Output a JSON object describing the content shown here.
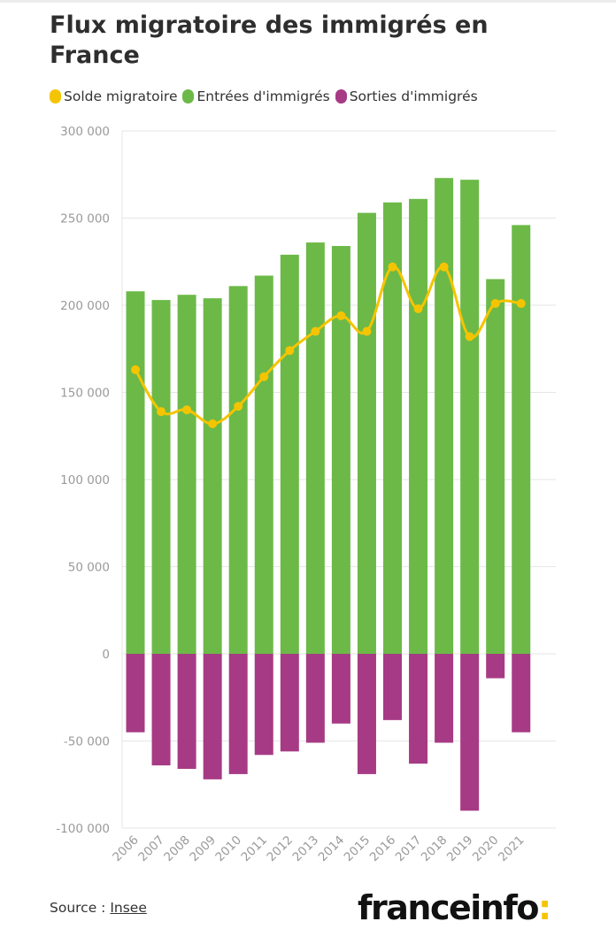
{
  "title": "Flux migratoire des immigrés en France",
  "legend": [
    {
      "label": "Solde migratoire",
      "color": "#f5c400"
    },
    {
      "label": "Entrées d'immigrés",
      "color": "#6cb948"
    },
    {
      "label": "Sorties d'immigrés",
      "color": "#a73a85"
    }
  ],
  "source": {
    "label": "Source : ",
    "link": "Insee"
  },
  "brand": {
    "name": "franceinfo",
    "colon": ":"
  },
  "chart_data": {
    "type": "bar",
    "categories": [
      "2006",
      "2007",
      "2008",
      "2009",
      "2010",
      "2011",
      "2012",
      "2013",
      "2014",
      "2015",
      "2016",
      "2017",
      "2018",
      "2019",
      "2020",
      "2021"
    ],
    "series": [
      {
        "name": "Entrées d'immigrés",
        "type": "bar",
        "color": "#6cb948",
        "values": [
          208000,
          203000,
          206000,
          204000,
          211000,
          217000,
          229000,
          236000,
          234000,
          253000,
          259000,
          261000,
          273000,
          272000,
          215000,
          246000
        ]
      },
      {
        "name": "Sorties d'immigrés",
        "type": "bar",
        "color": "#a73a85",
        "values": [
          -45000,
          -64000,
          -66000,
          -72000,
          -69000,
          -58000,
          -56000,
          -51000,
          -40000,
          -69000,
          -38000,
          -63000,
          -51000,
          -90000,
          -14000,
          -45000
        ]
      },
      {
        "name": "Solde migratoire",
        "type": "line",
        "color": "#f5c400",
        "values": [
          163000,
          139000,
          140000,
          132000,
          142000,
          159000,
          174000,
          185000,
          194000,
          185000,
          222000,
          198000,
          222000,
          182000,
          201000,
          201000
        ]
      }
    ],
    "ylim": [
      -100000,
      300000
    ],
    "yticks": [
      300000,
      250000,
      200000,
      150000,
      100000,
      50000,
      0,
      -50000,
      -100000
    ],
    "ytick_labels": [
      "300 000",
      "250 000",
      "200 000",
      "150 000",
      "100 000",
      "50 000",
      "0",
      "-50 000",
      "-100 000"
    ],
    "grid": true,
    "legend_position": "top-left"
  }
}
